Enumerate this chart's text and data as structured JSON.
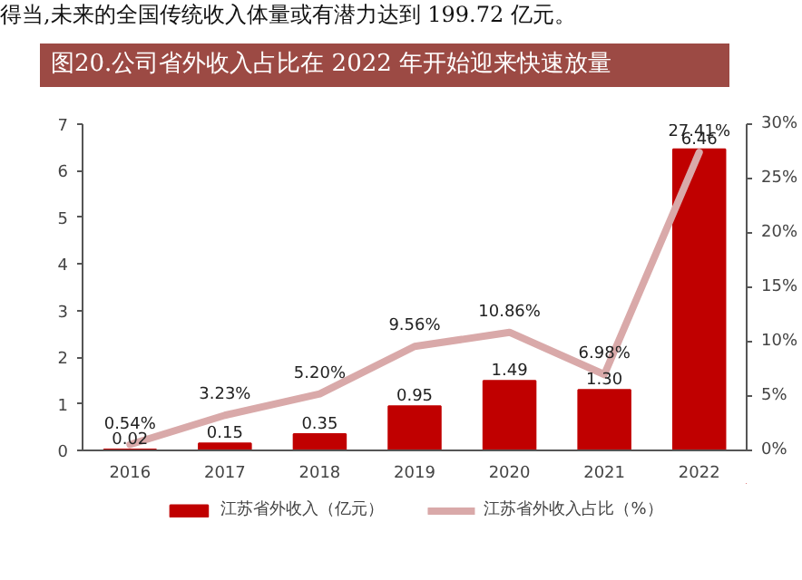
{
  "chart_data": {
    "type": "bar",
    "title": "图20.公司省外收入占比在 2022 年开始迎来快速放量",
    "annotations": [
      "得当,未来的全国传统收入体量或有潜力达到 199.72 亿元。"
    ],
    "categories": [
      "2016",
      "2017",
      "2018",
      "2019",
      "2020",
      "2021",
      "2022"
    ],
    "series": [
      {
        "name": "江苏省外收入（亿元）",
        "color": "#c00000",
        "values": [
          0.02,
          0.15,
          0.35,
          0.95,
          1.49,
          1.3,
          6.46
        ],
        "value_labels": [
          "0.02",
          "0.15",
          "0.35",
          "0.95",
          "1.49",
          "1.30",
          "6.46"
        ]
      },
      {
        "name": "江苏省外收入占比（%）",
        "type": "line",
        "axis": "y2",
        "color": "#d9a9a9",
        "values": [
          0.54,
          3.23,
          5.2,
          9.56,
          10.86,
          6.98,
          27.41
        ],
        "value_labels": [
          "0.54%",
          "3.23%",
          "5.20%",
          "9.56%",
          "10.86%",
          "6.98%",
          "27.41%"
        ]
      }
    ],
    "ylim": [
      0,
      7
    ],
    "yticks": [
      0,
      1,
      2,
      3,
      4,
      5,
      6,
      7
    ],
    "y2lim": [
      0,
      30
    ],
    "y2ticks": [
      {
        "value": 0,
        "label": "0%"
      },
      {
        "value": 5,
        "label": "5%"
      },
      {
        "value": 10,
        "label": "10%"
      },
      {
        "value": 15,
        "label": "15%"
      },
      {
        "value": 20,
        "label": "20%"
      },
      {
        "value": 25,
        "label": "25%"
      },
      {
        "value": 30,
        "label": "30%"
      }
    ],
    "grid": false,
    "legend": "bottom",
    "data_labels": true
  }
}
